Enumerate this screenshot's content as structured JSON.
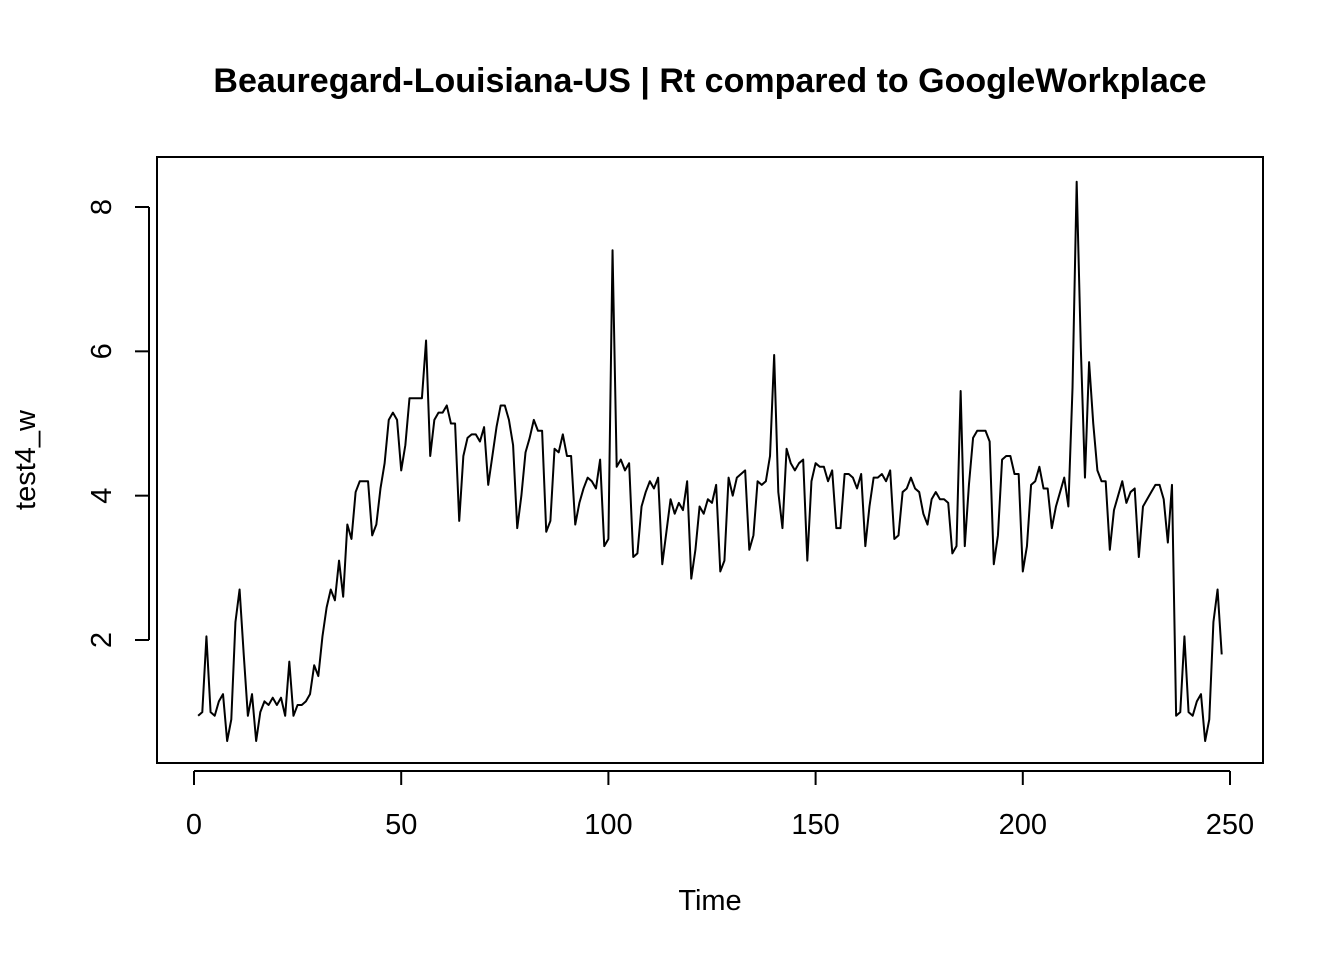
{
  "chart_data": {
    "type": "line",
    "title": "Beauregard-Louisiana-US | Rt compared to GoogleWorkplace",
    "xlabel": "Time",
    "ylabel": "test4_w",
    "xlim": [
      0,
      250
    ],
    "ylim": [
      0.5,
      8.6
    ],
    "x_ticks": [
      0,
      50,
      100,
      150,
      200,
      250
    ],
    "y_ticks": [
      2,
      4,
      6,
      8
    ],
    "grid": false,
    "legend": "none",
    "line_color": "#000000",
    "series": [
      {
        "x_start": 1,
        "x_step": 1,
        "values": [
          0.95,
          1.0,
          2.05,
          1.0,
          0.95,
          1.15,
          1.25,
          0.6,
          0.9,
          2.25,
          2.7,
          1.8,
          0.95,
          1.25,
          0.6,
          1.0,
          1.15,
          1.1,
          1.2,
          1.1,
          1.2,
          0.95,
          1.7,
          0.95,
          1.1,
          1.1,
          1.15,
          1.25,
          1.65,
          1.5,
          2.05,
          2.45,
          2.7,
          2.55,
          3.1,
          2.6,
          3.6,
          3.4,
          4.05,
          4.2,
          4.2,
          4.2,
          3.45,
          3.6,
          4.1,
          4.45,
          5.05,
          5.15,
          5.05,
          4.35,
          4.7,
          5.35,
          5.35,
          5.35,
          5.35,
          6.15,
          4.55,
          5.05,
          5.15,
          5.15,
          5.25,
          5.0,
          5.0,
          3.65,
          4.55,
          4.8,
          4.85,
          4.85,
          4.75,
          4.95,
          4.15,
          4.55,
          4.95,
          5.25,
          5.25,
          5.05,
          4.7,
          3.55,
          4.0,
          4.6,
          4.8,
          5.05,
          4.9,
          4.9,
          3.5,
          3.65,
          4.65,
          4.6,
          4.85,
          4.55,
          4.55,
          3.6,
          3.9,
          4.1,
          4.25,
          4.2,
          4.1,
          4.5,
          3.3,
          3.4,
          7.4,
          4.4,
          4.5,
          4.35,
          4.45,
          3.15,
          3.2,
          3.85,
          4.05,
          4.2,
          4.1,
          4.25,
          3.05,
          3.5,
          3.95,
          3.75,
          3.9,
          3.8,
          4.2,
          2.85,
          3.25,
          3.85,
          3.75,
          3.95,
          3.9,
          4.15,
          2.95,
          3.1,
          4.25,
          4.0,
          4.25,
          4.3,
          4.35,
          3.25,
          3.45,
          4.2,
          4.15,
          4.2,
          4.55,
          5.95,
          4.05,
          3.55,
          4.65,
          4.45,
          4.35,
          4.45,
          4.5,
          3.1,
          4.2,
          4.45,
          4.4,
          4.4,
          4.2,
          4.35,
          3.55,
          3.55,
          4.3,
          4.3,
          4.25,
          4.1,
          4.3,
          3.3,
          3.85,
          4.25,
          4.25,
          4.3,
          4.2,
          4.35,
          3.4,
          3.45,
          4.05,
          4.1,
          4.25,
          4.1,
          4.05,
          3.75,
          3.6,
          3.95,
          4.05,
          3.95,
          3.95,
          3.9,
          3.2,
          3.3,
          5.45,
          3.3,
          4.15,
          4.8,
          4.9,
          4.9,
          4.9,
          4.75,
          3.05,
          3.45,
          4.5,
          4.55,
          4.55,
          4.3,
          4.3,
          2.95,
          3.3,
          4.15,
          4.2,
          4.4,
          4.1,
          4.1,
          3.55,
          3.85,
          4.05,
          4.25,
          3.85,
          5.5,
          8.35,
          6.05,
          4.25,
          5.85,
          5.0,
          4.35,
          4.2,
          4.2,
          3.25,
          3.8,
          4.0,
          4.2,
          3.9,
          4.05,
          4.1,
          3.15,
          3.85,
          3.95,
          4.05,
          4.15,
          4.15,
          3.95,
          3.35,
          4.15,
          0.95,
          1.0,
          2.05,
          1.0,
          0.95,
          1.15,
          1.25,
          0.6,
          0.9,
          2.25,
          2.7,
          1.8
        ]
      }
    ]
  }
}
